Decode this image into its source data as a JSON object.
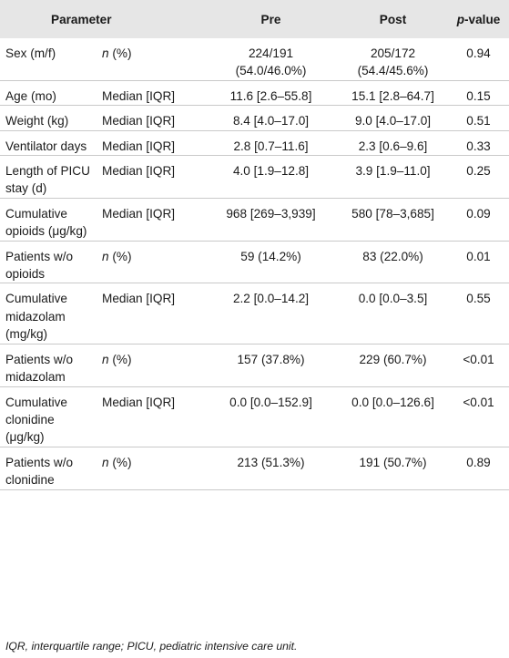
{
  "headers": {
    "parameter": "Parameter",
    "pre": "Pre",
    "post": "Post",
    "p_prefix": "p",
    "p_suffix": "-value"
  },
  "rows": [
    {
      "param": "Sex (m/f)",
      "stat_prefix": "n",
      "stat_suffix": " (%)",
      "pre_a": "224/191",
      "pre_b": "(54.0/46.0%)",
      "post_a": "205/172",
      "post_b": "(54.4/45.6%)",
      "p": "0.94"
    },
    {
      "param": "Age (mo)",
      "stat": "Median [IQR]",
      "pre": "11.6 [2.6–55.8]",
      "post": "15.1 [2.8–64.7]",
      "p": "0.15"
    },
    {
      "param": "Weight (kg)",
      "stat": "Median [IQR]",
      "pre": "8.4 [4.0–17.0]",
      "post": "9.0 [4.0–17.0]",
      "p": "0.51"
    },
    {
      "param": "Ventilator days",
      "stat": "Median [IQR]",
      "pre": "2.8 [0.7–11.6]",
      "post": "2.3 [0.6–9.6]",
      "p": "0.33"
    },
    {
      "param": "Length of PICU stay (d)",
      "stat": "Median [IQR]",
      "pre": "4.0 [1.9–12.8]",
      "post": "3.9 [1.9–11.0]",
      "p": "0.25"
    },
    {
      "param": "Cumulative opioids (μg/kg)",
      "stat": "Median [IQR]",
      "pre": "968 [269–3,939]",
      "post": "580 [78–3,685]",
      "p": "0.09"
    },
    {
      "param": "Patients w/o opioids",
      "stat_prefix": "n",
      "stat_suffix": " (%)",
      "pre": "59 (14.2%)",
      "post": "83 (22.0%)",
      "p": "0.01"
    },
    {
      "param": "Cumulative midazolam (mg/kg)",
      "stat": "Median [IQR]",
      "pre": "2.2 [0.0–14.2]",
      "post": "0.0 [0.0–3.5]",
      "p": "0.55"
    },
    {
      "param": "Patients w/o midazolam",
      "stat_prefix": "n",
      "stat_suffix": " (%)",
      "pre": "157 (37.8%)",
      "post": "229 (60.7%)",
      "p": "<0.01"
    },
    {
      "param": "Cumulative clonidine (μg/kg)",
      "stat": "Median [IQR]",
      "pre": "0.0 [0.0–152.9]",
      "post": "0.0 [0.0–126.6]",
      "p": "<0.01"
    },
    {
      "param": "Patients w/o clonidine",
      "stat_prefix": "n",
      "stat_suffix": " (%)",
      "pre": "213 (51.3%)",
      "post": "191 (50.7%)",
      "p": "0.89"
    }
  ],
  "footnote": "IQR, interquartile range; PICU, pediatric intensive care unit."
}
